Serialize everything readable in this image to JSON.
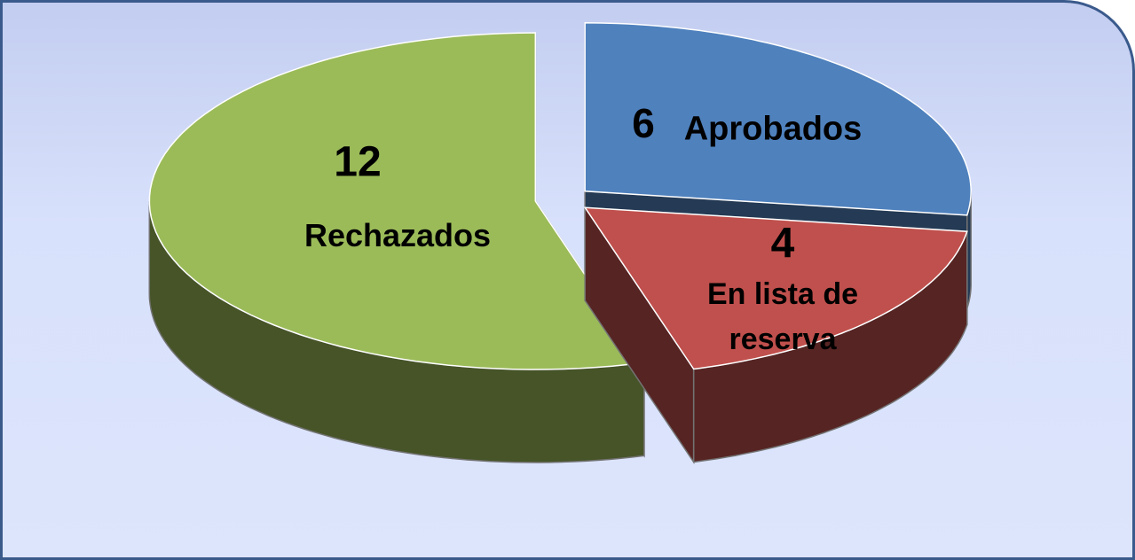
{
  "chart_data": {
    "type": "pie",
    "categories": [
      "Aprobados",
      "En lista de reserva",
      "Rechazados"
    ],
    "values": [
      6,
      4,
      12
    ],
    "colors": [
      "#4f81bd",
      "#c0504d",
      "#9bbb59"
    ]
  }
}
